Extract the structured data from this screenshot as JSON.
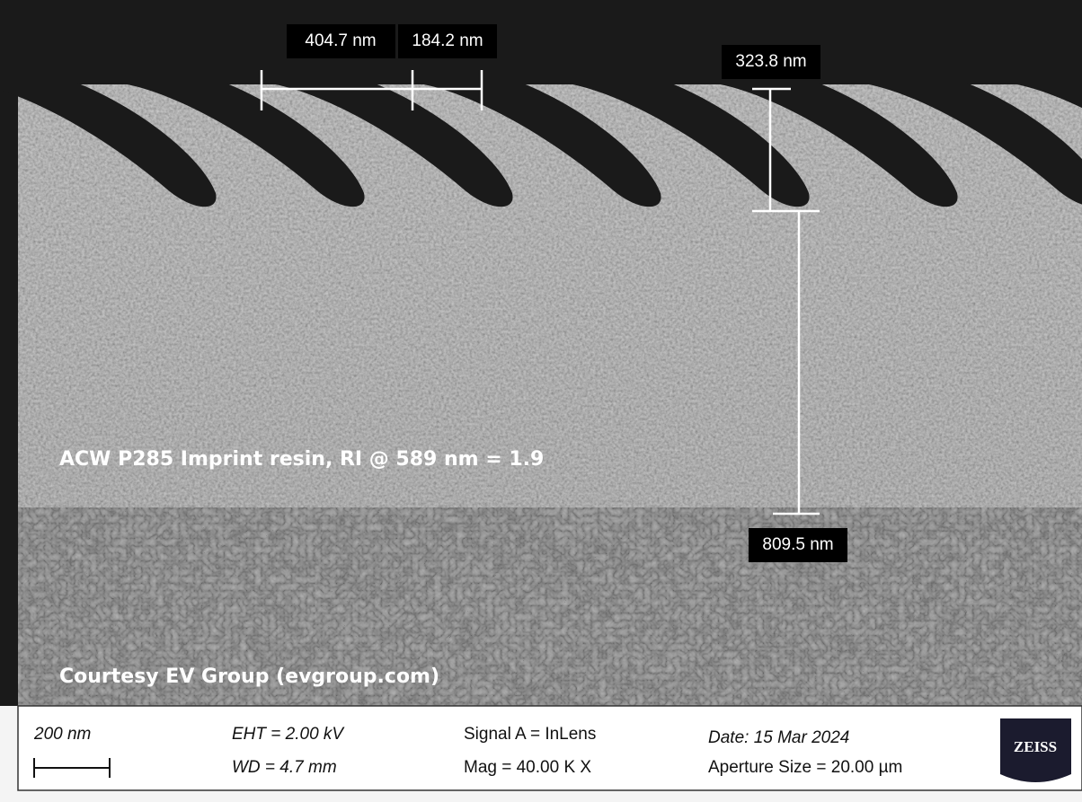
{
  "measurements": [
    {
      "label": "404.7 nm"
    },
    {
      "label": "184.2 nm"
    },
    {
      "label": "323.8 nm"
    },
    {
      "label": "809.5 nm"
    }
  ],
  "annotations": {
    "material": "ACW P285 Imprint resin, RI @ 589 nm = 1.9",
    "credit": "Courtesy EV Group (evgroup.com)"
  },
  "info_bar": {
    "scale_bar": "200 nm",
    "eht": "EHT =  2.00 kV",
    "wd": "WD =  4.7 mm",
    "signal": "Signal A = InLens",
    "mag": "Mag =  40.00 K X",
    "date": "Date: 15 Mar 2024",
    "aperture": "Aperture Size = 20.00 µm",
    "logo": "ZEISS"
  }
}
